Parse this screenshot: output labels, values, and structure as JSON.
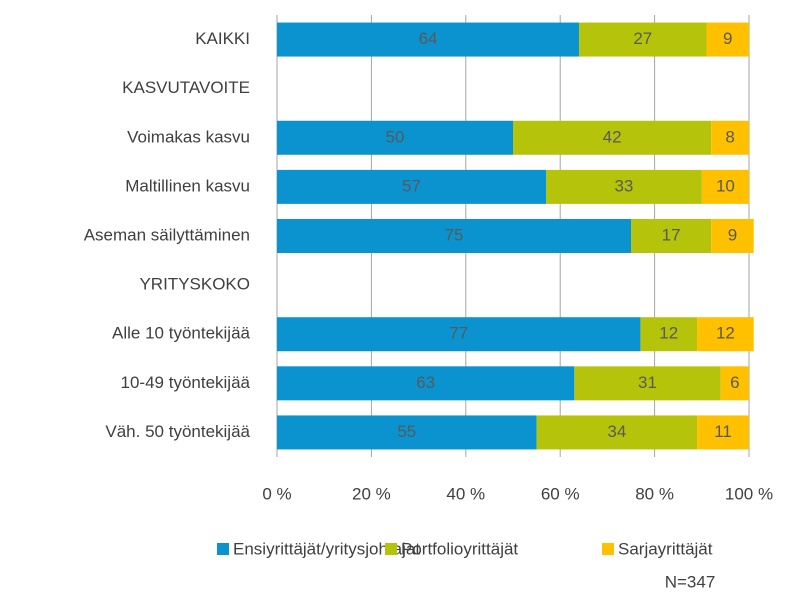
{
  "chart_data": {
    "type": "stacked-bar-horizontal",
    "categories": [
      "KAIKKI",
      "KASVUTAVOITE",
      "Voimakas kasvu",
      "Maltillinen kasvu",
      "Aseman säilyttäminen",
      "YRITYSKOKO",
      "Alle 10 työntekijää",
      "10-49 työntekijää",
      "Väh. 50 työntekijää"
    ],
    "series": [
      {
        "name": "Ensiyrittäjät/yritysjohtajat",
        "color": "#0a93cf",
        "values": [
          64,
          null,
          50,
          57,
          75,
          null,
          77,
          63,
          55
        ]
      },
      {
        "name": "Portfolioyrittäjät",
        "color": "#b5c40a",
        "values": [
          27,
          null,
          42,
          33,
          17,
          null,
          12,
          31,
          34
        ]
      },
      {
        "name": "Sarjayrittäjät",
        "color": "#ffc000",
        "values": [
          9,
          null,
          8,
          10,
          9,
          null,
          12,
          6,
          11
        ]
      }
    ],
    "xlim": [
      0,
      100
    ],
    "xticks": [
      {
        "value": 0,
        "label": "0 %"
      },
      {
        "value": 20,
        "label": "20 %"
      },
      {
        "value": 40,
        "label": "40 %"
      },
      {
        "value": 60,
        "label": "60 %"
      },
      {
        "value": 80,
        "label": "80 %"
      },
      {
        "value": 100,
        "label": "100 %"
      }
    ],
    "grid": true,
    "legend": "bottom",
    "annotations": [
      "N=347"
    ]
  }
}
